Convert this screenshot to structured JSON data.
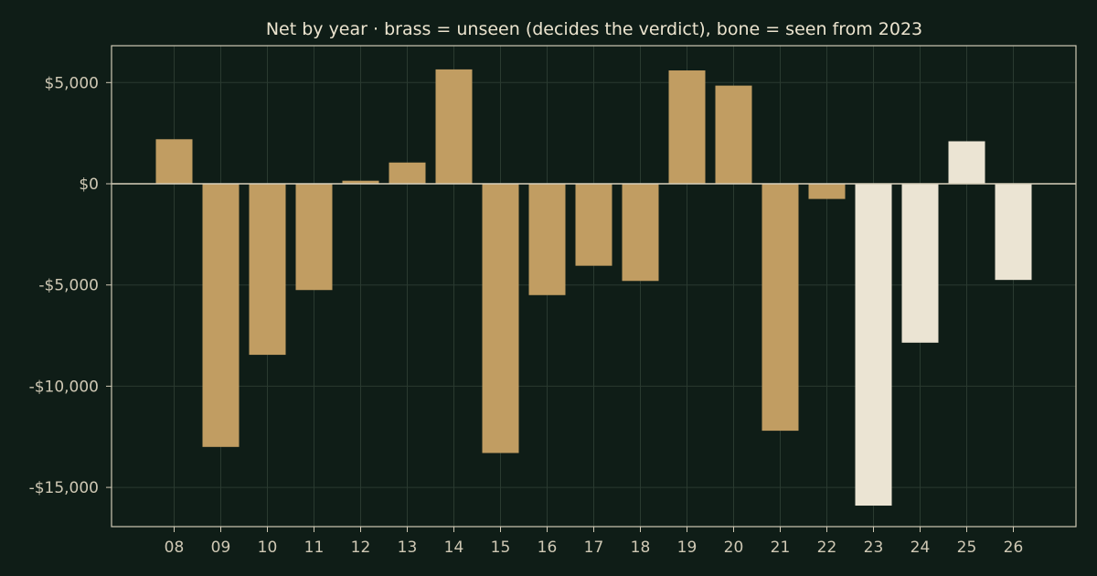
{
  "chart_data": {
    "type": "bar",
    "title": "Net by year  ·  brass = unseen (decides the verdict), bone = seen from 2023",
    "xlabel": "",
    "ylabel": "",
    "categories": [
      "08",
      "09",
      "10",
      "11",
      "12",
      "13",
      "14",
      "15",
      "16",
      "17",
      "18",
      "19",
      "20",
      "21",
      "22",
      "23",
      "24",
      "25",
      "26"
    ],
    "values": [
      2200,
      -13000,
      -8450,
      -5250,
      150,
      1050,
      5650,
      -13300,
      -5500,
      -4050,
      -4800,
      5600,
      4850,
      -12200,
      -750,
      -15900,
      -7850,
      2100,
      -4750
    ],
    "series_groups": [
      "unseen",
      "unseen",
      "unseen",
      "unseen",
      "unseen",
      "unseen",
      "unseen",
      "unseen",
      "unseen",
      "unseen",
      "unseen",
      "unseen",
      "unseen",
      "unseen",
      "unseen",
      "seen",
      "seen",
      "seen",
      "seen"
    ],
    "colors": {
      "unseen": "#c19d62",
      "seen": "#ebe4d3",
      "background": "#0f1d17",
      "grid": "#2a3a30"
    },
    "ylim": [
      -17000,
      6900
    ],
    "yticks": [
      5000,
      0,
      -5000,
      -10000,
      -15000
    ],
    "ytick_labels": [
      "$5,000",
      "$0",
      "-$5,000",
      "-$10,000",
      "-$15,000"
    ],
    "grid": true,
    "legend": "none"
  }
}
